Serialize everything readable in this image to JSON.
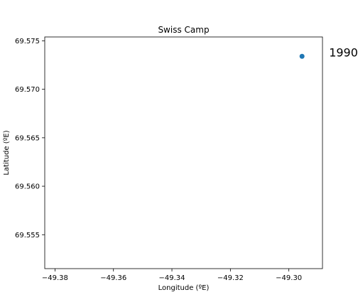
{
  "chart_data": {
    "type": "scatter",
    "title": "Swiss Camp",
    "xlabel": "Longitude (ºE)",
    "ylabel": "Latitude (ºE)",
    "xlim": [
      -49.3835,
      -49.2885
    ],
    "ylim": [
      69.5515,
      69.5754
    ],
    "xticks": [
      -49.38,
      -49.36,
      -49.34,
      -49.32,
      -49.3
    ],
    "xtick_labels": [
      "−49.38",
      "−49.36",
      "−49.34",
      "−49.32",
      "−49.30"
    ],
    "yticks": [
      69.555,
      69.56,
      69.565,
      69.57,
      69.575
    ],
    "ytick_labels": [
      "69.555",
      "69.560",
      "69.565",
      "69.570",
      "69.575"
    ],
    "points": [
      {
        "x": -49.2955,
        "y": 69.5734
      }
    ],
    "marker_color": "#1f77b4",
    "annotations": [
      {
        "text": "1990",
        "x": -49.2955,
        "y": 69.5734
      }
    ],
    "grid": false,
    "legend": "none"
  }
}
